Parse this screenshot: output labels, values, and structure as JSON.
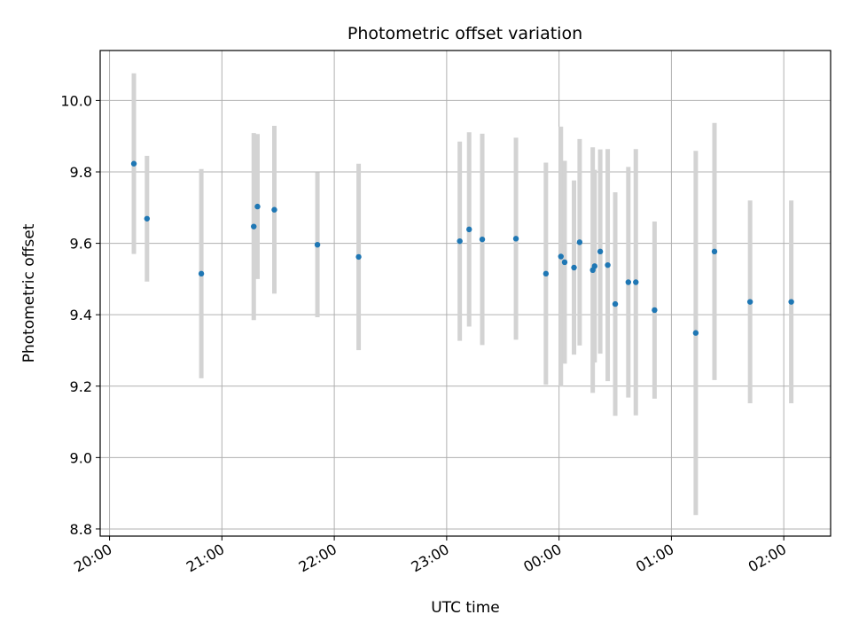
{
  "chart_data": {
    "type": "scatter",
    "title": "Photometric offset variation",
    "xlabel": "UTC time",
    "ylabel": "Photometric offset",
    "x_unit": "UTC hh:mm (hours after 00:00 of day 2 are > 24)",
    "xlim": [
      "19:55",
      "02:25"
    ],
    "ylim": [
      8.78,
      10.14
    ],
    "grid": true,
    "legend": "none",
    "x_ticks": [
      "20:00",
      "21:00",
      "22:00",
      "23:00",
      "00:00",
      "01:00",
      "02:00"
    ],
    "y_ticks": [
      "8.8",
      "9.0",
      "9.2",
      "9.4",
      "9.6",
      "9.8",
      "10.0"
    ],
    "series": [
      {
        "marker_color": "#1f77b4",
        "errorbar_color": "#d3d3d3",
        "points": [
          {
            "x": "20:13",
            "y": 9.823,
            "err": 0.253
          },
          {
            "x": "20:20",
            "y": 9.669,
            "err": 0.176
          },
          {
            "x": "20:49",
            "y": 9.515,
            "err": 0.293
          },
          {
            "x": "21:17",
            "y": 9.647,
            "err": 0.262
          },
          {
            "x": "21:19",
            "y": 9.703,
            "err": 0.203
          },
          {
            "x": "21:28",
            "y": 9.694,
            "err": 0.235
          },
          {
            "x": "21:51",
            "y": 9.596,
            "err": 0.203
          },
          {
            "x": "22:13",
            "y": 9.562,
            "err": 0.261
          },
          {
            "x": "23:07",
            "y": 9.606,
            "err": 0.279
          },
          {
            "x": "23:12",
            "y": 9.639,
            "err": 0.272
          },
          {
            "x": "23:19",
            "y": 9.611,
            "err": 0.296
          },
          {
            "x": "23:37",
            "y": 9.613,
            "err": 0.283
          },
          {
            "x": "23:53",
            "y": 9.515,
            "err": 0.311
          },
          {
            "x": "00:01",
            "y": 9.563,
            "err": 0.364
          },
          {
            "x": "00:03",
            "y": 9.547,
            "err": 0.284
          },
          {
            "x": "00:08",
            "y": 9.532,
            "err": 0.244
          },
          {
            "x": "00:11",
            "y": 9.603,
            "err": 0.289
          },
          {
            "x": "00:18",
            "y": 9.525,
            "err": 0.344
          },
          {
            "x": "00:19",
            "y": 9.536,
            "err": 0.27
          },
          {
            "x": "00:22",
            "y": 9.577,
            "err": 0.286
          },
          {
            "x": "00:26",
            "y": 9.539,
            "err": 0.325
          },
          {
            "x": "00:30",
            "y": 9.43,
            "err": 0.313
          },
          {
            "x": "00:37",
            "y": 9.491,
            "err": 0.323
          },
          {
            "x": "00:41",
            "y": 9.491,
            "err": 0.373
          },
          {
            "x": "00:51",
            "y": 9.413,
            "err": 0.248
          },
          {
            "x": "01:13",
            "y": 9.349,
            "err": 0.51
          },
          {
            "x": "01:23",
            "y": 9.577,
            "err": 0.36
          },
          {
            "x": "01:42",
            "y": 9.436,
            "err": 0.284
          },
          {
            "x": "02:04",
            "y": 9.436,
            "err": 0.284
          }
        ]
      }
    ]
  }
}
